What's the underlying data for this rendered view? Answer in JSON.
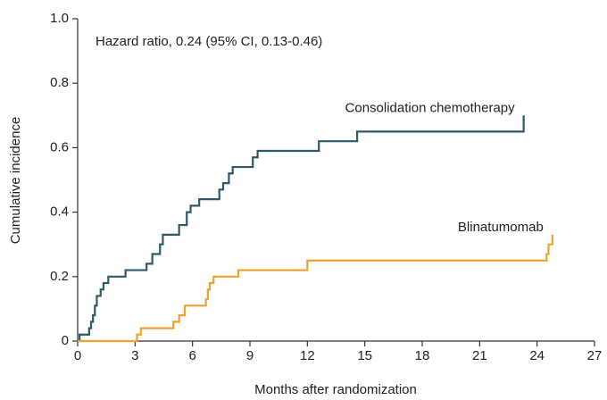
{
  "chart_data": {
    "type": "line",
    "step": "post",
    "annotation": "Hazard ratio, 0.24 (95% CI, 0.13-0.46)",
    "x_label": "Months after randomization",
    "y_label": "Cumulative incidence",
    "xlim": [
      0,
      27
    ],
    "xticks": [
      0,
      3,
      6,
      9,
      12,
      15,
      18,
      21,
      24,
      27
    ],
    "ylim": [
      0,
      1
    ],
    "yticks": [
      0,
      0.2,
      0.4,
      0.6,
      0.8,
      {
        "value": 1,
        "label": "1.0"
      }
    ],
    "series": [
      {
        "name": "Consolidation chemotherapy",
        "color": "#2d5968",
        "x": [
          0,
          0.1,
          0.6,
          0.7,
          0.8,
          0.9,
          1.0,
          1.2,
          1.35,
          1.6,
          2.5,
          3.6,
          3.9,
          4.3,
          4.45,
          5.3,
          5.7,
          5.9,
          6.35,
          7.4,
          7.6,
          7.9,
          8.1,
          9.15,
          9.4,
          12.6,
          14.6,
          23.3,
          23.3
        ],
        "values": [
          0,
          0.02,
          0.04,
          0.06,
          0.08,
          0.11,
          0.14,
          0.16,
          0.18,
          0.2,
          0.22,
          0.24,
          0.27,
          0.3,
          0.33,
          0.36,
          0.4,
          0.42,
          0.44,
          0.47,
          0.49,
          0.52,
          0.54,
          0.57,
          0.59,
          0.62,
          0.65,
          0.65,
          0.7
        ]
      },
      {
        "name": "Blinatumomab",
        "color": "#f0a030",
        "x": [
          0,
          3.1,
          3.3,
          5.0,
          5.3,
          5.6,
          6.7,
          6.8,
          6.9,
          7.1,
          8.4,
          12.0,
          24.5,
          24.6,
          24.8
        ],
        "values": [
          0,
          0.02,
          0.04,
          0.06,
          0.08,
          0.11,
          0.13,
          0.16,
          0.18,
          0.2,
          0.22,
          0.25,
          0.27,
          0.3,
          0.33
        ]
      }
    ]
  }
}
